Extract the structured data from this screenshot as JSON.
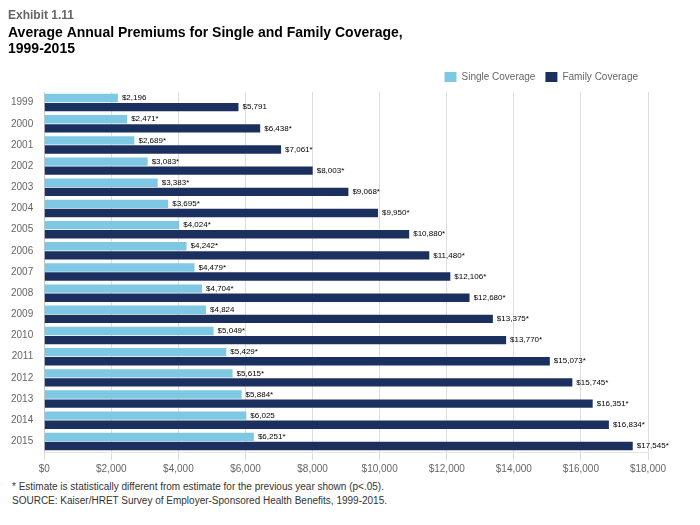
{
  "chart_data": {
    "type": "bar",
    "orientation": "horizontal",
    "title": "Exhibit 1.11",
    "subtitle": [
      "Average Annual Premiums for Single and Family Coverage,",
      "1999-2015"
    ],
    "annotations": [
      "* Estimate is statistically different from estimate for the previous year shown (p<.05).",
      "SOURCE:  Kaiser/HRET Survey of Employer-Sponsored Health Benefits, 1999-2015."
    ],
    "categories": [
      "1999",
      "2000",
      "2001",
      "2002",
      "2003",
      "2004",
      "2005",
      "2006",
      "2007",
      "2008",
      "2009",
      "2010",
      "2011",
      "2012",
      "2013",
      "2014",
      "2015"
    ],
    "series": [
      {
        "name": "Single Coverage",
        "color": "#7EC8E3",
        "values": [
          2196,
          2471,
          2689,
          3083,
          3383,
          3695,
          4024,
          4242,
          4479,
          4704,
          4824,
          5049,
          5429,
          5615,
          5884,
          6025,
          6251
        ],
        "value_labels": [
          "$2,196",
          "$2,471*",
          "$2,689*",
          "$3,083*",
          "$3,383*",
          "$3,695*",
          "$4,024*",
          "$4,242*",
          "$4,479*",
          "$4,704*",
          "$4,824",
          "$5,049*",
          "$5,429*",
          "$5,615*",
          "$5,884*",
          "$6,025",
          "$6,251*"
        ]
      },
      {
        "name": "Family Coverage",
        "color": "#1C3060",
        "values": [
          5791,
          6438,
          7061,
          8003,
          9068,
          9950,
          10880,
          11480,
          12106,
          12680,
          13375,
          13770,
          15073,
          15745,
          16351,
          16834,
          17545
        ],
        "value_labels": [
          "$5,791",
          "$6,438*",
          "$7,061*",
          "$8,003*",
          "$9,068*",
          "$9,950*",
          "$10,880*",
          "$11,480*",
          "$12,106*",
          "$12,680*",
          "$13,375*",
          "$13,770*",
          "$15,073*",
          "$15,745*",
          "$16,351*",
          "$16,834*",
          "$17,545*"
        ]
      }
    ],
    "xlim": [
      0,
      18000
    ],
    "xticks": [
      {
        "value": 0,
        "label": "$0"
      },
      {
        "value": 2000,
        "label": "$2,000"
      },
      {
        "value": 4000,
        "label": "$4,000"
      },
      {
        "value": 6000,
        "label": "$6,000"
      },
      {
        "value": 8000,
        "label": "$8,000"
      },
      {
        "value": 10000,
        "label": "$10,000"
      },
      {
        "value": 12000,
        "label": "$12,000"
      },
      {
        "value": 14000,
        "label": "$14,000"
      },
      {
        "value": 16000,
        "label": "$16,000"
      },
      {
        "value": 18000,
        "label": "$18,000"
      }
    ],
    "grid": true,
    "legend": "upper right",
    "data_labels": true
  }
}
